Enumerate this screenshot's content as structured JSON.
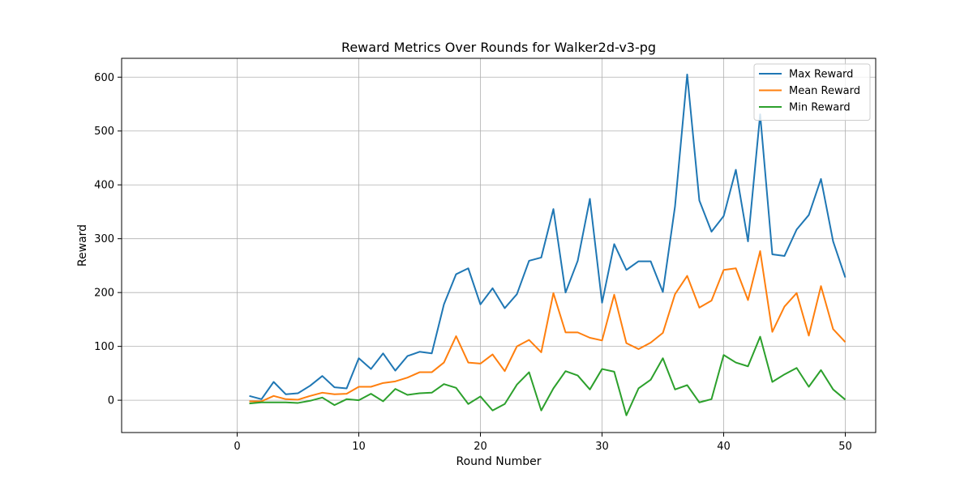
{
  "chart_data": {
    "type": "line",
    "title": "Reward Metrics Over Rounds for Walker2d-v3-pg",
    "xlabel": "Round Number",
    "ylabel": "Reward",
    "xlim": [
      -9.5,
      52.5
    ],
    "ylim": [
      -60,
      635
    ],
    "xticks": [
      0,
      10,
      20,
      30,
      40,
      50
    ],
    "yticks": [
      0,
      100,
      200,
      300,
      400,
      500,
      600
    ],
    "grid": true,
    "legend_position": "top-right",
    "x": [
      1,
      2,
      3,
      4,
      5,
      6,
      7,
      8,
      9,
      10,
      11,
      12,
      13,
      14,
      15,
      16,
      17,
      18,
      19,
      20,
      21,
      22,
      23,
      24,
      25,
      26,
      27,
      28,
      29,
      30,
      31,
      32,
      33,
      34,
      35,
      36,
      37,
      38,
      39,
      40,
      41,
      42,
      43,
      44,
      45,
      46,
      47,
      48,
      49,
      50
    ],
    "series": [
      {
        "name": "Max Reward",
        "color": "#1f77b4",
        "values": [
          8,
          2,
          34,
          11,
          13,
          27,
          45,
          24,
          22,
          78,
          58,
          87,
          55,
          82,
          90,
          87,
          178,
          234,
          245,
          178,
          208,
          171,
          197,
          259,
          265,
          355,
          200,
          259,
          374,
          181,
          290,
          242,
          258,
          258,
          201,
          360,
          605,
          371,
          313,
          342,
          428,
          295,
          531,
          271,
          268,
          317,
          344,
          411,
          295,
          228
        ]
      },
      {
        "name": "Mean Reward",
        "color": "#ff7f0e",
        "values": [
          -2,
          -2,
          8,
          2,
          1,
          8,
          14,
          11,
          12,
          25,
          25,
          32,
          35,
          42,
          52,
          52,
          70,
          119,
          70,
          68,
          85,
          54,
          100,
          112,
          89,
          199,
          126,
          126,
          116,
          111,
          196,
          106,
          95,
          107,
          125,
          197,
          231,
          172,
          185,
          242,
          245,
          186,
          277,
          127,
          174,
          199,
          120,
          212,
          132,
          108
        ]
      },
      {
        "name": "Min Reward",
        "color": "#2ca02c",
        "values": [
          -6,
          -4,
          -4,
          -4,
          -5,
          -1,
          5,
          -9,
          2,
          0,
          12,
          -2,
          21,
          10,
          13,
          14,
          30,
          23,
          -7,
          7,
          -19,
          -7,
          29,
          52,
          -19,
          22,
          54,
          46,
          20,
          58,
          53,
          -28,
          22,
          38,
          78,
          20,
          28,
          -4,
          2,
          84,
          70,
          63,
          118,
          34,
          48,
          60,
          25,
          56,
          20,
          1
        ]
      }
    ]
  }
}
